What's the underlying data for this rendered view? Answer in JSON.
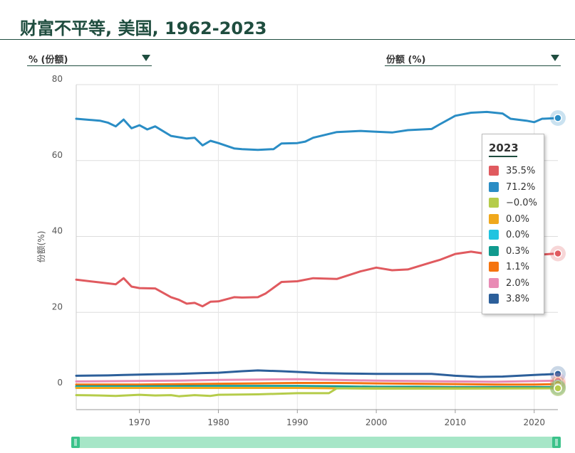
{
  "title": "财富不平等, 美国, 1962-2023",
  "controls": {
    "left_select": "% (份额)",
    "right_select": "份额 (%)"
  },
  "tooltip": {
    "year": "2023",
    "items": [
      {
        "value": "35.5%",
        "color": "#e05a5f"
      },
      {
        "value": "71.2%",
        "color": "#2a8dc5"
      },
      {
        "value": "−0.0%",
        "color": "#b5cc4a"
      },
      {
        "value": "0.0%",
        "color": "#f0a81c"
      },
      {
        "value": "0.0%",
        "color": "#21c4e0"
      },
      {
        "value": "0.3%",
        "color": "#109a8e"
      },
      {
        "value": "1.1%",
        "color": "#f5740f"
      },
      {
        "value": "2.0%",
        "color": "#e98bb5"
      },
      {
        "value": "3.8%",
        "color": "#2c5f9a"
      }
    ]
  },
  "chart_data": {
    "type": "line",
    "title": "财富不平等, 美国, 1962-2023",
    "ylabel": "份额(%)",
    "xlabel": "",
    "xlim": [
      1962,
      2023
    ],
    "ylim": [
      -6,
      80
    ],
    "xticks": [
      1970,
      1980,
      1990,
      2000,
      2010,
      2020
    ],
    "yticks": [
      0,
      20,
      40,
      60,
      80
    ],
    "grid": true,
    "series": [
      {
        "color": "#2a8dc5",
        "x": [
          1962,
          1965,
          1966,
          1967,
          1968,
          1969,
          1970,
          1971,
          1972,
          1974,
          1976,
          1977,
          1978,
          1979,
          1980,
          1982,
          1983,
          1985,
          1987,
          1988,
          1990,
          1991,
          1992,
          1995,
          1998,
          2000,
          2002,
          2004,
          2007,
          2008,
          2010,
          2012,
          2014,
          2016,
          2017,
          2019,
          2020,
          2021,
          2023
        ],
        "y": [
          71,
          70.5,
          70,
          69,
          70.8,
          68.5,
          69.3,
          68.2,
          69,
          66.5,
          65.8,
          66,
          64,
          65.2,
          64.6,
          63.2,
          63,
          62.8,
          63,
          64.5,
          64.6,
          65,
          66,
          67.5,
          67.8,
          67.6,
          67.4,
          68,
          68.3,
          69.5,
          71.8,
          72.6,
          72.8,
          72.4,
          71,
          70.5,
          70.1,
          71,
          71.2
        ]
      },
      {
        "color": "#e05a5f",
        "x": [
          1962,
          1965,
          1967,
          1968,
          1969,
          1970,
          1972,
          1974,
          1975,
          1976,
          1977,
          1978,
          1979,
          1980,
          1982,
          1983,
          1985,
          1986,
          1988,
          1990,
          1992,
          1995,
          1998,
          2000,
          2002,
          2004,
          2007,
          2008,
          2010,
          2012,
          2014,
          2016,
          2018,
          2020,
          2022,
          2023
        ],
        "y": [
          28.6,
          27.9,
          27.4,
          29,
          26.8,
          26.4,
          26.3,
          24,
          23.3,
          22.3,
          22.5,
          21.6,
          22.8,
          22.9,
          24,
          23.9,
          24,
          25,
          28,
          28.2,
          29,
          28.8,
          30.8,
          31.8,
          31.1,
          31.3,
          33.2,
          33.8,
          35.4,
          36,
          35.4,
          35.3,
          35.8,
          35.1,
          35.4,
          35.5
        ]
      },
      {
        "color": "#2c5f9a",
        "x": [
          1962,
          1966,
          1968,
          1970,
          1972,
          1975,
          1978,
          1980,
          1983,
          1985,
          1988,
          1990,
          1993,
          1996,
          2000,
          2003,
          2007,
          2010,
          2013,
          2016,
          2020,
          2023
        ],
        "y": [
          3.3,
          3.4,
          3.5,
          3.6,
          3.7,
          3.8,
          4.0,
          4.1,
          4.5,
          4.7,
          4.5,
          4.3,
          4.0,
          3.9,
          3.8,
          3.8,
          3.8,
          3.3,
          3.0,
          3.1,
          3.5,
          3.8
        ]
      },
      {
        "color": "#e98bb5",
        "x": [
          1962,
          1968,
          1975,
          1980,
          1985,
          1990,
          1995,
          2000,
          2005,
          2010,
          2015,
          2020,
          2023
        ],
        "y": [
          1.8,
          1.9,
          2.0,
          2.2,
          2.3,
          2.4,
          2.2,
          2.0,
          1.9,
          1.8,
          1.7,
          1.9,
          2.0
        ]
      },
      {
        "color": "#f5740f",
        "x": [
          1962,
          1970,
          1980,
          1985,
          1990,
          1995,
          2000,
          2005,
          2010,
          2015,
          2020,
          2023
        ],
        "y": [
          1.0,
          1.0,
          1.2,
          1.3,
          1.4,
          1.4,
          1.3,
          1.2,
          1.1,
          1.0,
          1.0,
          1.1
        ]
      },
      {
        "color": "#109a8e",
        "x": [
          1962,
          1970,
          1980,
          1990,
          1995,
          2000,
          2005,
          2010,
          2015,
          2020,
          2023
        ],
        "y": [
          0.5,
          0.5,
          0.6,
          0.6,
          0.5,
          0.4,
          0.4,
          0.3,
          0.3,
          0.3,
          0.3
        ]
      },
      {
        "color": "#21c4e0",
        "x": [
          1962,
          1970,
          1980,
          1990,
          1995,
          2000,
          2010,
          2023
        ],
        "y": [
          0.2,
          0.2,
          0.2,
          0.2,
          0.1,
          0.1,
          0.0,
          0.0
        ]
      },
      {
        "color": "#f0a81c",
        "x": [
          1962,
          1970,
          1980,
          1990,
          1995,
          2000,
          2010,
          2023
        ],
        "y": [
          0.1,
          0.1,
          0.1,
          0.1,
          0.0,
          0.0,
          0.0,
          0.0
        ]
      },
      {
        "color": "#b5cc4a",
        "x": [
          1962,
          1965,
          1967,
          1970,
          1972,
          1974,
          1975,
          1977,
          1979,
          1980,
          1985,
          1990,
          1994,
          1995,
          2000,
          2010,
          2023
        ],
        "y": [
          -1.8,
          -1.9,
          -2.0,
          -1.7,
          -1.9,
          -1.8,
          -2.1,
          -1.8,
          -2.0,
          -1.7,
          -1.6,
          -1.3,
          -1.3,
          0,
          -0.1,
          -0.1,
          0.0
        ]
      }
    ]
  }
}
